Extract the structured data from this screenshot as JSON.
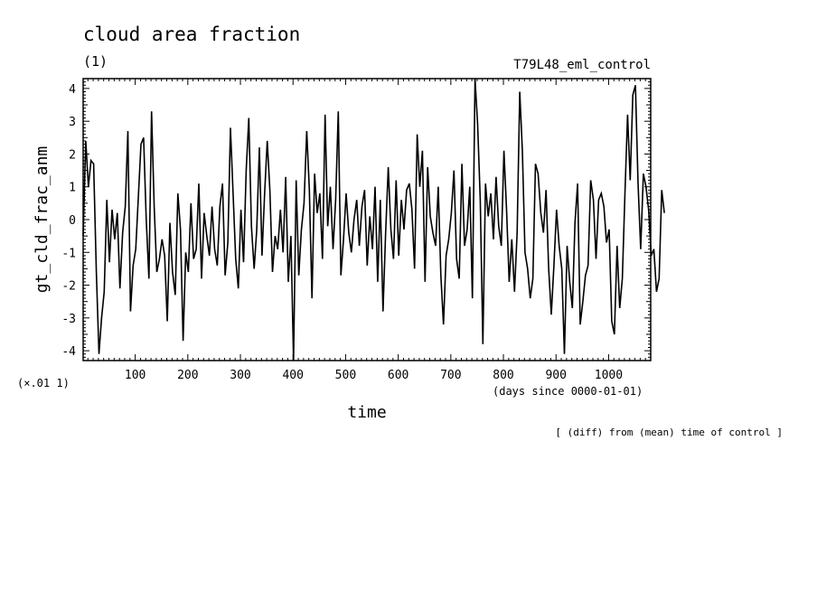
{
  "header": {
    "title": "cloud area fraction",
    "units": "(1)",
    "experiment": "T79L48_eml_control"
  },
  "scale_note": "(×.01 1)",
  "x_units_note": "(days since 0000-01-01)",
  "footer_note": "[ (diff) from (mean) time of control ]",
  "chart_data": {
    "type": "line",
    "title": "cloud area fraction",
    "xlabel": "time",
    "ylabel": "gt_cld_frac_anm",
    "xlim": [
      1,
      1080
    ],
    "ylim": [
      -4.3,
      4.3
    ],
    "x_ticks": [
      100,
      200,
      300,
      400,
      500,
      600,
      700,
      800,
      900,
      1000
    ],
    "y_ticks": [
      -4,
      -3,
      -2,
      -1,
      0,
      1,
      2,
      3,
      4
    ],
    "grid": false,
    "series": [
      {
        "color": "#000000",
        "x_step": 5,
        "x_start": 1,
        "values": [
          -0.5,
          2.4,
          1.0,
          1.8,
          1.7,
          -1.6,
          -4.1,
          -3.0,
          -2.2,
          0.6,
          -1.3,
          0.3,
          -0.6,
          0.2,
          -2.1,
          -0.4,
          0.4,
          2.7,
          -2.8,
          -1.4,
          -0.9,
          0.7,
          2.3,
          2.5,
          0.0,
          -1.8,
          3.3,
          0.4,
          -1.6,
          -1.2,
          -0.6,
          -1.1,
          -3.1,
          -0.1,
          -1.6,
          -2.3,
          0.8,
          -0.3,
          -3.7,
          -1.0,
          -1.6,
          0.5,
          -1.2,
          -0.9,
          1.1,
          -1.8,
          0.2,
          -0.5,
          -1.1,
          0.4,
          -0.9,
          -1.4,
          0.4,
          1.1,
          -1.7,
          -0.7,
          2.8,
          0.8,
          -1.2,
          -2.1,
          0.3,
          -1.3,
          1.5,
          3.1,
          -0.2,
          -1.5,
          -0.3,
          2.2,
          -1.1,
          0.8,
          2.4,
          0.9,
          -1.6,
          -0.5,
          -0.9,
          0.3,
          -1.0,
          1.3,
          -1.9,
          -0.5,
          -4.3,
          1.2,
          -1.7,
          -0.3,
          0.5,
          2.7,
          0.9,
          -2.4,
          1.4,
          0.2,
          0.8,
          -1.2,
          3.2,
          -0.2,
          1.0,
          -0.9,
          0.6,
          3.3,
          -1.7,
          -0.6,
          0.8,
          -0.4,
          -1.0,
          0.0,
          0.6,
          -0.8,
          0.4,
          0.9,
          -1.4,
          0.1,
          -0.9,
          1.0,
          -1.9,
          0.6,
          -2.8,
          -0.4,
          1.6,
          -0.3,
          -1.2,
          1.2,
          -1.1,
          0.6,
          -0.3,
          0.9,
          1.1,
          0.3,
          -1.5,
          2.6,
          1.0,
          2.1,
          -1.9,
          1.6,
          0.1,
          -0.4,
          -0.8,
          1.0,
          -1.7,
          -3.2,
          -1.1,
          -0.6,
          0.2,
          1.5,
          -1.2,
          -1.8,
          1.7,
          -0.8,
          -0.3,
          1.0,
          -2.4,
          4.3,
          2.9,
          0.6,
          -3.8,
          1.1,
          0.1,
          0.8,
          -0.6,
          1.3,
          -0.2,
          -0.8,
          2.1,
          0.3,
          -1.9,
          -0.6,
          -2.2,
          -0.4,
          3.9,
          2.1,
          -1.0,
          -1.5,
          -2.4,
          -1.8,
          1.7,
          1.4,
          0.2,
          -0.4,
          0.9,
          -1.5,
          -2.9,
          -1.4,
          0.3,
          -0.8,
          -1.5,
          -4.1,
          -0.8,
          -1.9,
          -2.7,
          -0.1,
          1.1,
          -3.2,
          -2.5,
          -1.7,
          -1.4,
          1.2,
          0.6,
          -1.2,
          0.6,
          0.8,
          0.4,
          -0.7,
          -0.3,
          -3.1,
          -3.5,
          -0.8,
          -2.7,
          -1.8,
          0.8,
          3.2,
          1.2,
          3.8,
          4.1,
          1.1,
          -0.9,
          1.4,
          1.0,
          0.3,
          -1.1,
          -0.9,
          -2.2,
          -1.8,
          0.9,
          0.2
        ]
      }
    ]
  }
}
